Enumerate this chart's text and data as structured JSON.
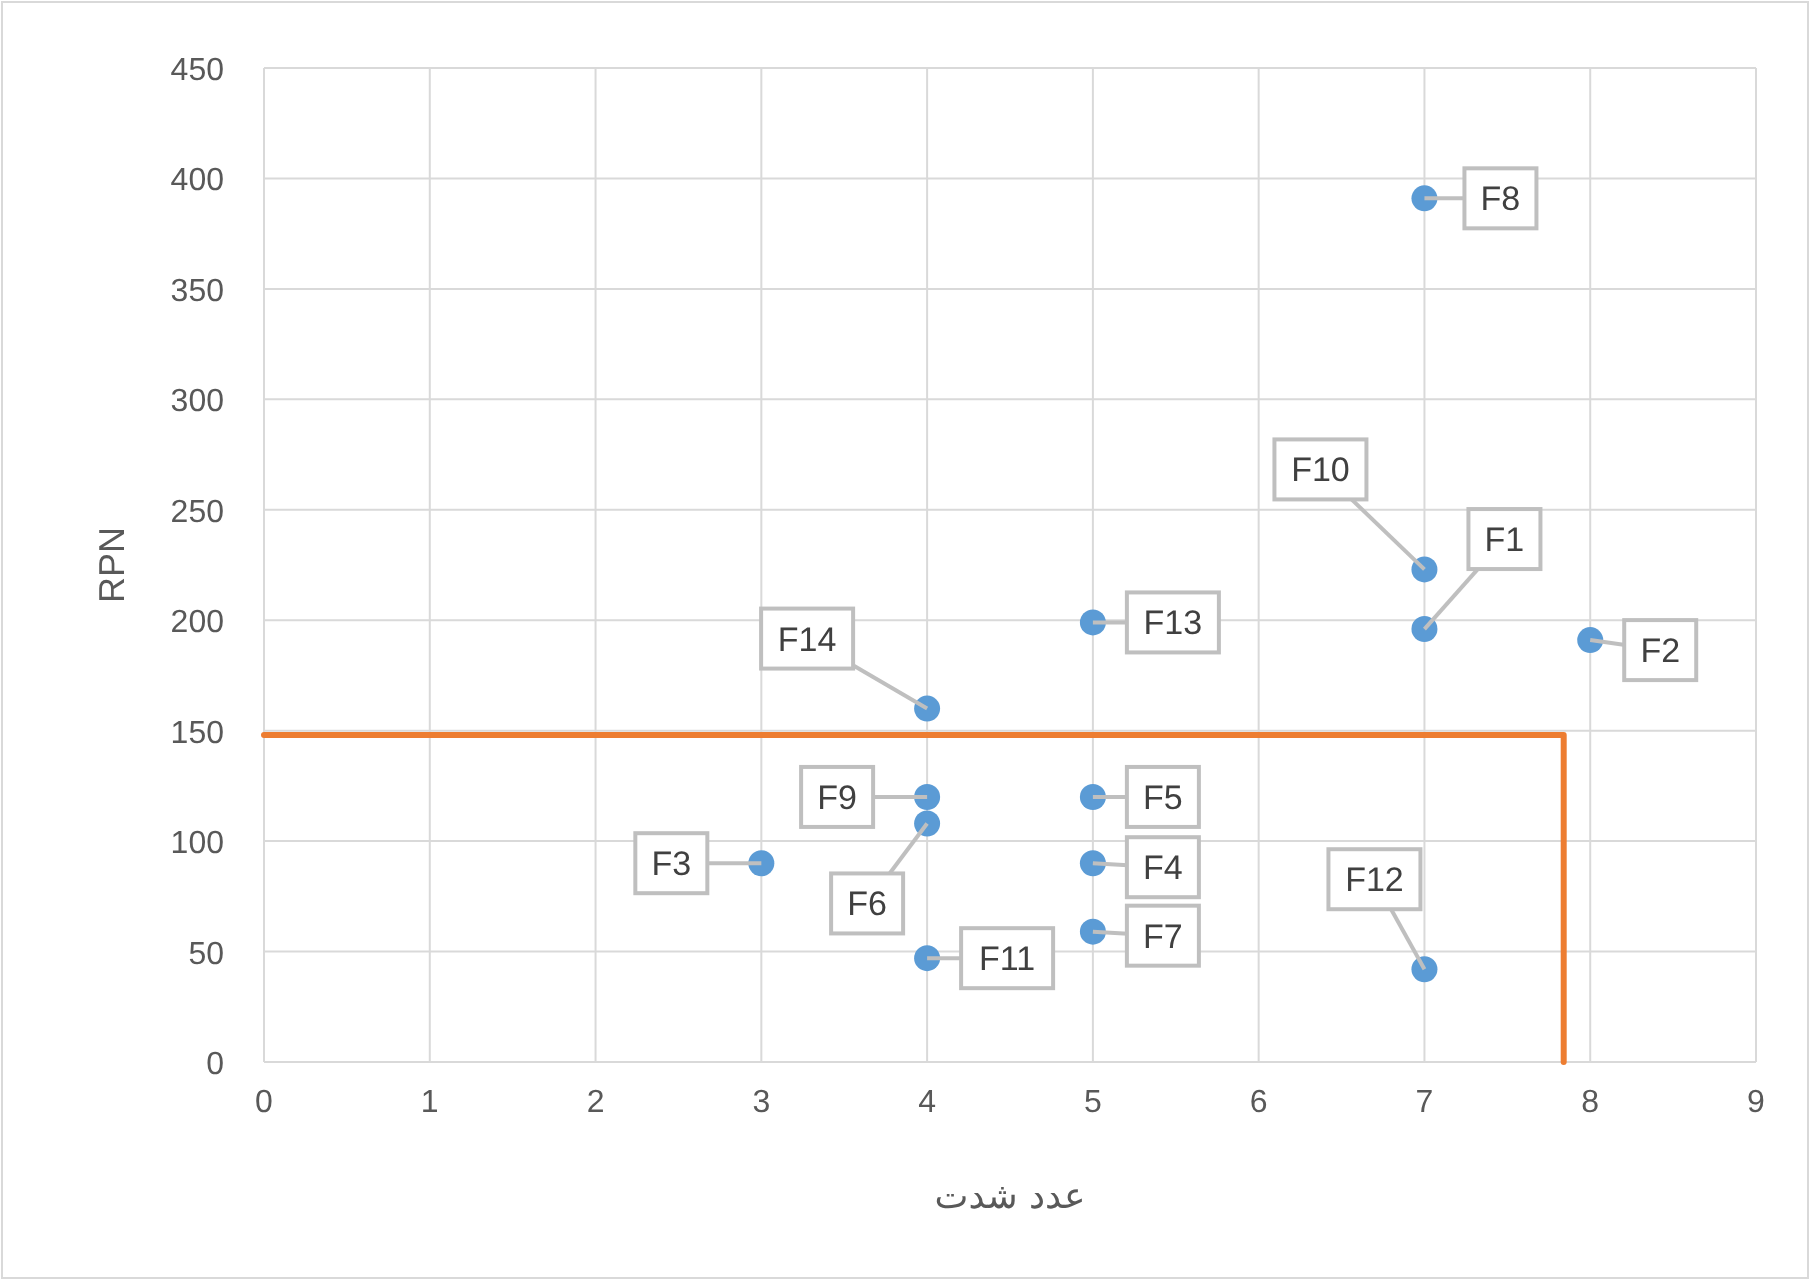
{
  "chart_data": {
    "type": "scatter",
    "xlabel": "عدد شدت",
    "ylabel": "RPN",
    "xlim": [
      0,
      9
    ],
    "xticks": [
      0,
      1,
      2,
      3,
      4,
      5,
      6,
      7,
      8,
      9
    ],
    "ylim": [
      0,
      450
    ],
    "yticks": [
      0,
      50,
      100,
      150,
      200,
      250,
      300,
      350,
      400,
      450
    ],
    "grid": true,
    "marker": "circle",
    "series": [
      {
        "color": "#5b9bd5",
        "x": [
          7,
          8,
          3,
          5,
          5,
          4,
          5,
          7,
          4,
          7,
          4,
          7,
          5,
          4
        ],
        "values": [
          196,
          191,
          90,
          90,
          120,
          108,
          59,
          391,
          120,
          223,
          47,
          42,
          199,
          160
        ]
      },
      {
        "type": "line",
        "color": "#ed7d31",
        "marker": "none",
        "x": [
          0,
          7.84,
          7.84
        ],
        "values": [
          148,
          148,
          0
        ]
      }
    ],
    "annotations": [
      {
        "text": "F1",
        "x": 7,
        "y": 196
      },
      {
        "text": "F2",
        "x": 8,
        "y": 191
      },
      {
        "text": "F3",
        "x": 3,
        "y": 90
      },
      {
        "text": "F4",
        "x": 5,
        "y": 90
      },
      {
        "text": "F5",
        "x": 5,
        "y": 120
      },
      {
        "text": "F6",
        "x": 4,
        "y": 108
      },
      {
        "text": "F7",
        "x": 5,
        "y": 59
      },
      {
        "text": "F8",
        "x": 7,
        "y": 391
      },
      {
        "text": "F9",
        "x": 4,
        "y": 120
      },
      {
        "text": "F10",
        "x": 7,
        "y": 223
      },
      {
        "text": "F11",
        "x": 4,
        "y": 47
      },
      {
        "text": "F12",
        "x": 7,
        "y": 42
      },
      {
        "text": "F13",
        "x": 5,
        "y": 199
      },
      {
        "text": "F14",
        "x": 4,
        "y": 160
      }
    ]
  }
}
